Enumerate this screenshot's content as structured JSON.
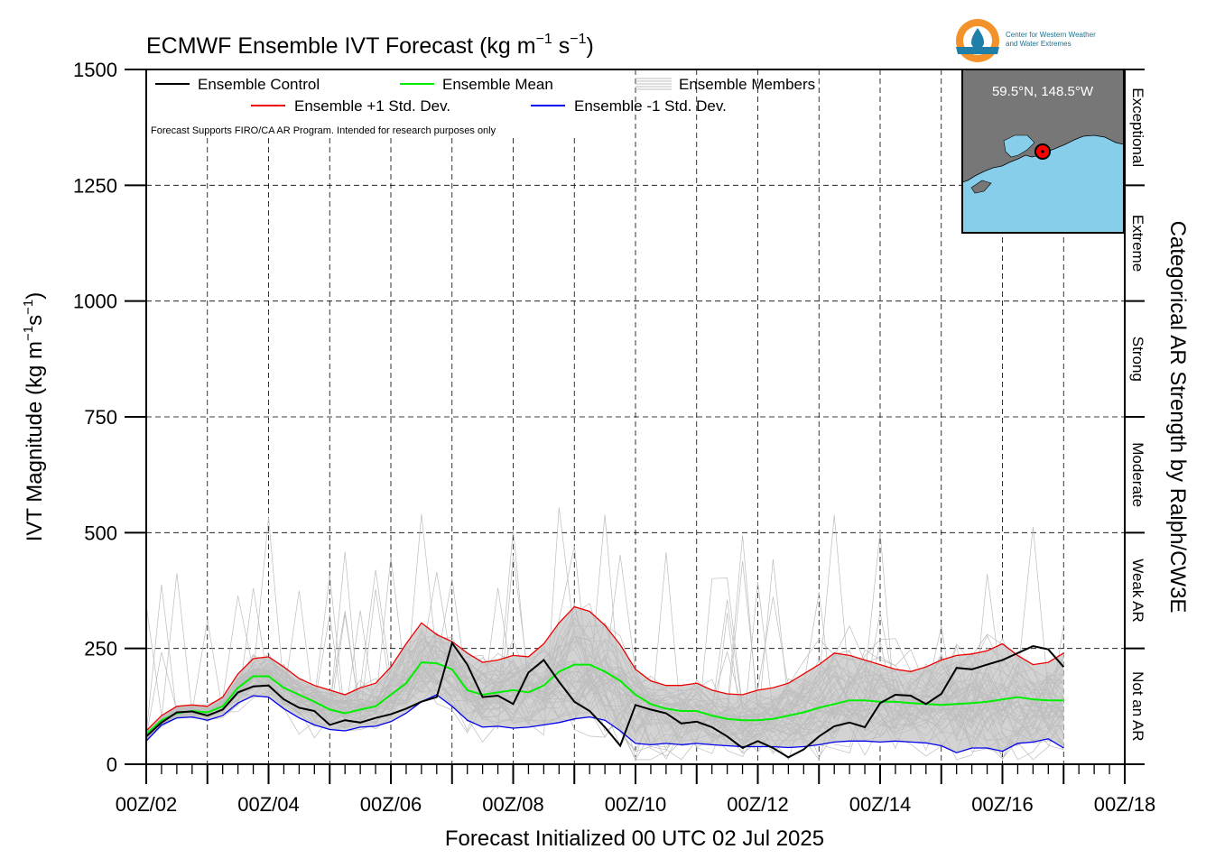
{
  "chart_data": {
    "type": "line",
    "title": "ECMWF Ensemble IVT Forecast (kg m",
    "title_sup1": "−1",
    "title_mid": " s",
    "title_sup2": "−1",
    "title_end": ")",
    "ylabel": "IVT Magnitude (kg m",
    "ylabel_sup1": "−1",
    "ylabel_mid": "s",
    "ylabel_sup2": "−1",
    "ylabel_end": ")",
    "xlabel": "Forecast Initialized 00 UTC 02 Jul 2025",
    "right_label": "Categorical AR Strength by Ralph/CW3E",
    "note": "Forecast Supports FIRO/CA AR Program. Intended for research purposes only",
    "ylim": [
      0,
      1500
    ],
    "xlim_days": [
      2,
      18
    ],
    "yticks": [
      0,
      250,
      500,
      750,
      1000,
      1250,
      1500
    ],
    "xtick_labels": [
      "00Z/02",
      "00Z/04",
      "00Z/06",
      "00Z/08",
      "00Z/10",
      "00Z/12",
      "00Z/14",
      "00Z/16",
      "00Z/18"
    ],
    "xtick_days": [
      2,
      4,
      6,
      8,
      10,
      12,
      14,
      16,
      18
    ],
    "grid": true,
    "categories": [
      {
        "label": "Not an AR",
        "min": 0,
        "max": 250
      },
      {
        "label": "Weak AR",
        "min": 250,
        "max": 500
      },
      {
        "label": "Moderate",
        "min": 500,
        "max": 750
      },
      {
        "label": "Strong",
        "min": 750,
        "max": 1000
      },
      {
        "label": "Extreme",
        "min": 1000,
        "max": 1250
      },
      {
        "label": "Exceptional",
        "min": 1250,
        "max": 1500
      }
    ],
    "legend": {
      "control": "Ensemble Control",
      "mean": "Ensemble Mean",
      "members": "Ensemble Members",
      "plus_sd": "Ensemble +1 Std. Dev.",
      "minus_sd": "Ensemble -1 Std. Dev."
    },
    "series": [
      {
        "name": "Ensemble Control",
        "color": "#000000",
        "x": [
          2.0,
          2.25,
          2.5,
          2.75,
          3.0,
          3.25,
          3.5,
          3.75,
          4.0,
          4.25,
          4.5,
          4.75,
          5.0,
          5.25,
          5.5,
          5.75,
          6.0,
          6.25,
          6.5,
          6.75,
          7.0,
          7.25,
          7.5,
          7.75,
          8.0,
          8.25,
          8.5,
          8.75,
          9.0,
          9.25,
          9.5,
          9.75,
          10.0,
          10.25,
          10.5,
          10.75,
          11.0,
          11.25,
          11.5,
          11.75,
          12.0,
          12.25,
          12.5,
          12.75,
          13.0,
          13.25,
          13.5,
          13.75,
          14.0,
          14.25,
          14.5,
          14.75,
          15.0,
          15.25,
          15.5,
          15.75,
          16.0,
          16.25,
          16.5,
          16.75,
          17.0
        ],
        "y": [
          60,
          90,
          112,
          114,
          105,
          118,
          155,
          168,
          170,
          140,
          122,
          115,
          85,
          95,
          90,
          100,
          108,
          120,
          135,
          145,
          262,
          215,
          145,
          148,
          130,
          198,
          225,
          178,
          135,
          115,
          80,
          40,
          128,
          118,
          110,
          88,
          92,
          80,
          60,
          35,
          50,
          35,
          15,
          32,
          60,
          82,
          90,
          80,
          132,
          150,
          148,
          130,
          152,
          208,
          205,
          215,
          225,
          240,
          255,
          248,
          210
        ]
      },
      {
        "name": "Ensemble Mean",
        "color": "#00ee00",
        "x": [
          2.0,
          2.25,
          2.5,
          2.75,
          3.0,
          3.25,
          3.5,
          3.75,
          4.0,
          4.25,
          4.5,
          4.75,
          5.0,
          5.25,
          5.5,
          5.75,
          6.0,
          6.25,
          6.5,
          6.75,
          7.0,
          7.25,
          7.5,
          7.75,
          8.0,
          8.25,
          8.5,
          8.75,
          9.0,
          9.25,
          9.5,
          9.75,
          10.0,
          10.25,
          10.5,
          10.75,
          11.0,
          11.25,
          11.5,
          11.75,
          12.0,
          12.25,
          12.5,
          12.75,
          13.0,
          13.25,
          13.5,
          13.75,
          14.0,
          14.25,
          14.5,
          14.75,
          15.0,
          15.25,
          15.5,
          15.75,
          16.0,
          16.25,
          16.5,
          16.75,
          17.0
        ],
        "y": [
          65,
          95,
          110,
          115,
          112,
          125,
          165,
          190,
          190,
          165,
          150,
          135,
          118,
          110,
          118,
          125,
          150,
          175,
          220,
          218,
          205,
          160,
          150,
          155,
          160,
          155,
          170,
          200,
          215,
          215,
          200,
          180,
          150,
          130,
          120,
          115,
          115,
          105,
          98,
          95,
          95,
          98,
          105,
          112,
          122,
          130,
          138,
          138,
          135,
          135,
          132,
          130,
          128,
          130,
          132,
          135,
          140,
          145,
          140,
          138,
          138
        ]
      },
      {
        "name": "Ensemble +1 Std. Dev.",
        "color": "#ee0000",
        "x": [
          2.0,
          2.25,
          2.5,
          2.75,
          3.0,
          3.25,
          3.5,
          3.75,
          4.0,
          4.25,
          4.5,
          4.75,
          5.0,
          5.25,
          5.5,
          5.75,
          6.0,
          6.25,
          6.5,
          6.75,
          7.0,
          7.25,
          7.5,
          7.75,
          8.0,
          8.25,
          8.5,
          8.75,
          9.0,
          9.25,
          9.5,
          9.75,
          10.0,
          10.25,
          10.5,
          10.75,
          11.0,
          11.25,
          11.5,
          11.75,
          12.0,
          12.25,
          12.5,
          12.75,
          13.0,
          13.25,
          13.5,
          13.75,
          14.0,
          14.25,
          14.5,
          14.75,
          15.0,
          15.25,
          15.5,
          15.75,
          16.0,
          16.25,
          16.5,
          16.75,
          17.0
        ],
        "y": [
          72,
          105,
          125,
          128,
          125,
          145,
          195,
          228,
          232,
          210,
          185,
          170,
          160,
          150,
          165,
          175,
          210,
          260,
          305,
          280,
          265,
          240,
          220,
          225,
          235,
          232,
          260,
          305,
          340,
          330,
          300,
          258,
          205,
          180,
          170,
          170,
          175,
          160,
          152,
          150,
          160,
          165,
          175,
          195,
          215,
          240,
          235,
          225,
          215,
          205,
          200,
          210,
          225,
          235,
          238,
          245,
          260,
          235,
          215,
          220,
          240
        ]
      },
      {
        "name": "Ensemble -1 Std. Dev.",
        "color": "#0000ee",
        "x": [
          2.0,
          2.25,
          2.5,
          2.75,
          3.0,
          3.25,
          3.5,
          3.75,
          4.0,
          4.25,
          4.5,
          4.75,
          5.0,
          5.25,
          5.5,
          5.75,
          6.0,
          6.25,
          6.5,
          6.75,
          7.0,
          7.25,
          7.5,
          7.75,
          8.0,
          8.25,
          8.5,
          8.75,
          9.0,
          9.25,
          9.5,
          9.75,
          10.0,
          10.25,
          10.5,
          10.75,
          11.0,
          11.25,
          11.5,
          11.75,
          12.0,
          12.25,
          12.5,
          12.75,
          13.0,
          13.25,
          13.5,
          13.75,
          14.0,
          14.25,
          14.5,
          14.75,
          15.0,
          15.25,
          15.5,
          15.75,
          16.0,
          16.25,
          16.5,
          16.75,
          17.0
        ],
        "y": [
          50,
          85,
          100,
          102,
          95,
          105,
          132,
          148,
          145,
          120,
          100,
          85,
          75,
          72,
          80,
          82,
          92,
          110,
          135,
          150,
          125,
          95,
          80,
          82,
          78,
          80,
          85,
          90,
          98,
          102,
          95,
          72,
          45,
          42,
          45,
          42,
          45,
          42,
          40,
          38,
          38,
          38,
          36,
          38,
          42,
          48,
          50,
          50,
          48,
          50,
          48,
          46,
          40,
          25,
          35,
          35,
          28,
          45,
          48,
          55,
          35
        ]
      }
    ]
  },
  "inset": {
    "label": "59.5°N, 148.5°W",
    "water_color": "#87ceeb",
    "land_color": "#777777",
    "marker_color": "#ff0000"
  },
  "logo": {
    "line1": "Center for Western Weather",
    "line2": "and Water Extremes"
  },
  "colors": {
    "members": "#bdbdbd",
    "shade": "#d3d3d3",
    "grid": "#000000"
  }
}
